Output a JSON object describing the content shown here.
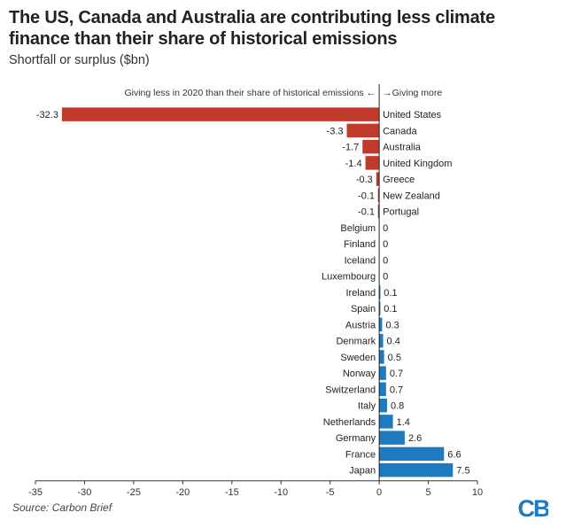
{
  "header": {
    "title": "The US, Canada and Australia are contributing less climate finance than their share of historical emissions",
    "subtitle": "Shortfall or surplus ($bn)"
  },
  "annotation": {
    "left": "Giving less in 2020 than their share of historical emissions ←",
    "right": "→Giving more"
  },
  "footer": {
    "source": "Source: Carbon Brief",
    "logo_text": "CB"
  },
  "colors": {
    "negative": "#c0392b",
    "positive": "#1f7bc1",
    "logo": "#1f7bc1",
    "axis": "#333333"
  },
  "chart_data": {
    "type": "bar",
    "orientation": "horizontal",
    "categories": [
      "United States",
      "Canada",
      "Australia",
      "United Kingdom",
      "Greece",
      "New Zealand",
      "Portugal",
      "Belgium",
      "Finland",
      "Iceland",
      "Luxembourg",
      "Ireland",
      "Spain",
      "Austria",
      "Denmark",
      "Sweden",
      "Norway",
      "Switzerland",
      "Italy",
      "Netherlands",
      "Germany",
      "France",
      "Japan"
    ],
    "values": [
      -32.3,
      -3.3,
      -1.7,
      -1.4,
      -0.3,
      -0.1,
      -0.1,
      0,
      0,
      0,
      0,
      0.1,
      0.1,
      0.3,
      0.4,
      0.5,
      0.7,
      0.7,
      0.8,
      1.4,
      2.6,
      6.6,
      7.5
    ],
    "value_labels": [
      "-32.3",
      "-3.3",
      "-1.7",
      "-1.4",
      "-0.3",
      "-0.1",
      "-0.1",
      "0",
      "0",
      "0",
      "0",
      "0.1",
      "0.1",
      "0.3",
      "0.4",
      "0.5",
      "0.7",
      "0.7",
      "0.8",
      "1.4",
      "2.6",
      "6.6",
      "7.5"
    ],
    "xlim": [
      -35,
      10
    ],
    "xticks": [
      -35,
      -30,
      -25,
      -20,
      -15,
      -10,
      -5,
      0,
      5,
      10
    ],
    "xtick_labels": [
      "-35",
      "-30",
      "-25",
      "-20",
      "-15",
      "-10",
      "-5",
      "0",
      "5",
      "10"
    ],
    "grid": false,
    "legend": "none"
  }
}
